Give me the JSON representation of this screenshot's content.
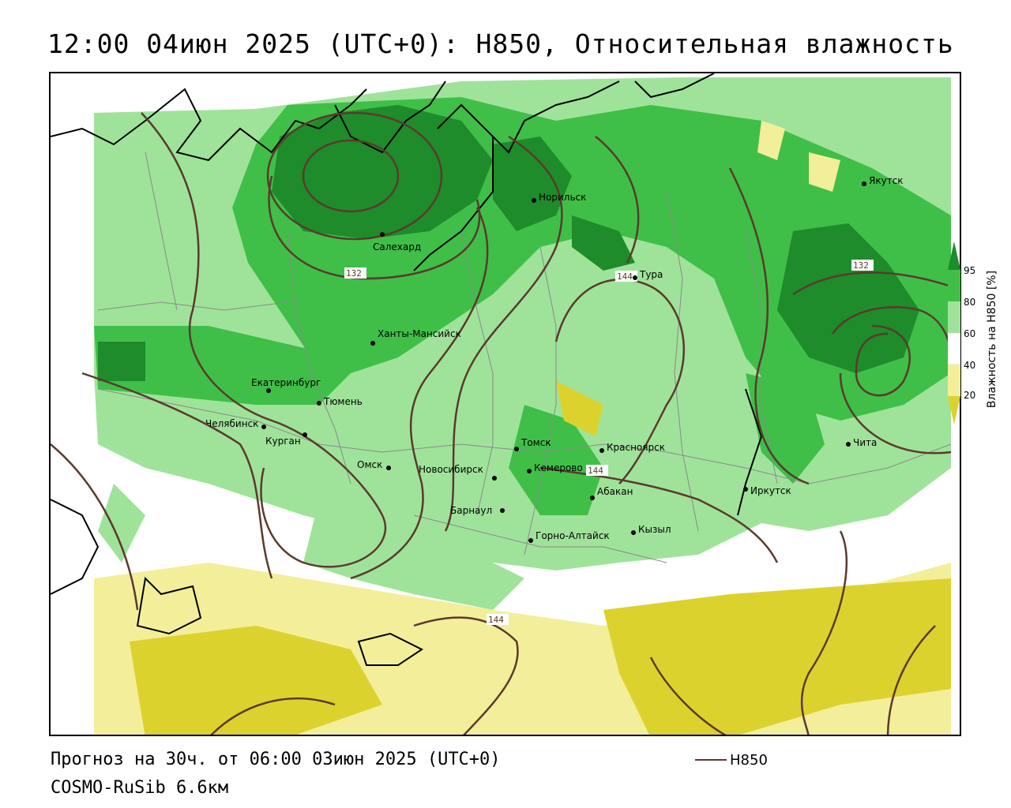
{
  "title": "12:00 04июн 2025 (UTC+0): H850, Относительная влажность",
  "footer": {
    "forecast": "Прогноз на 30ч. от 06:00 03июн 2025 (UTC+0)",
    "model": "COSMO-RuSib 6.6км",
    "legend_series": "H850"
  },
  "colorbar": {
    "title": "Влажность на H850 [%]",
    "ticks": [
      "95",
      "80",
      "60",
      "40",
      "20"
    ],
    "colors": {
      "c95": "#1e8c2a",
      "c80": "#3fbf48",
      "c60": "#9fe39a",
      "c40": "#ffffff",
      "c20": "#f3ee9a",
      "c0": "#dcd22e"
    }
  },
  "contour_labels": [
    "132",
    "144",
    "132",
    "144",
    "144"
  ],
  "cities": [
    {
      "name": "Салехард"
    },
    {
      "name": "Норильск"
    },
    {
      "name": "Тура"
    },
    {
      "name": "Якутск"
    },
    {
      "name": "Ханты-Мансийск"
    },
    {
      "name": "Екатеринбург"
    },
    {
      "name": "Тюмень"
    },
    {
      "name": "Челябинск"
    },
    {
      "name": "Курган"
    },
    {
      "name": "Омск"
    },
    {
      "name": "Новосибирск"
    },
    {
      "name": "Томск"
    },
    {
      "name": "Кемерово"
    },
    {
      "name": "Красноярск"
    },
    {
      "name": "Барнаул"
    },
    {
      "name": "Абакан"
    },
    {
      "name": "Горно-Алтайск"
    },
    {
      "name": "Кызыл"
    },
    {
      "name": "Иркутск"
    },
    {
      "name": "Чита"
    }
  ]
}
